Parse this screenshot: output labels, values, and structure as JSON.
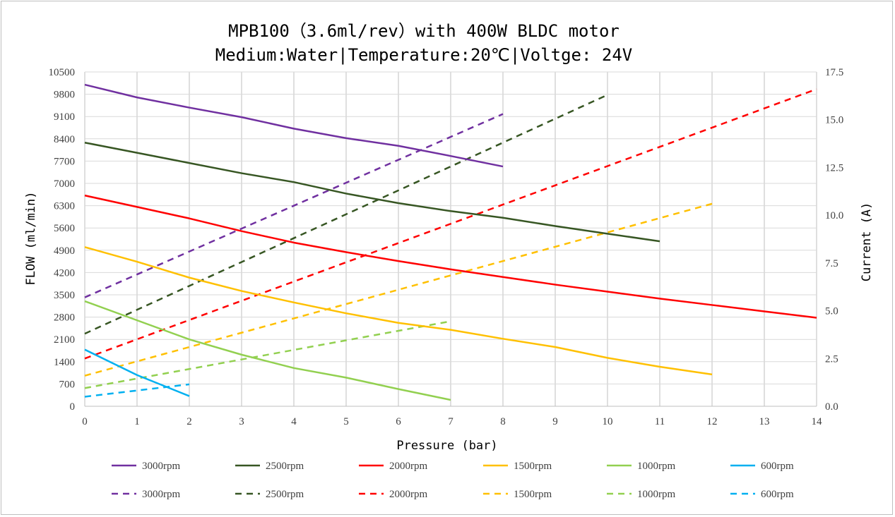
{
  "chart_data": {
    "type": "line",
    "title": "MPB100（3.6ml/rev）with 400W BLDC motor",
    "subtitle": "Medium:Water|Temperature:20℃|Voltge: 24V",
    "xlabel": "Pressure (bar)",
    "ylabel": "FLOW (ml/min)",
    "y2label": "Current (A)",
    "xlim": [
      0,
      14
    ],
    "ylim": [
      0,
      10500
    ],
    "y2lim": [
      0,
      17.5
    ],
    "x_ticks": [
      "0",
      "1",
      "2",
      "3",
      "4",
      "5",
      "6",
      "7",
      "8",
      "9",
      "10",
      "11",
      "12",
      "13",
      "14"
    ],
    "y_ticks": [
      "0",
      "700",
      "1400",
      "2100",
      "2800",
      "3500",
      "4200",
      "4900",
      "5600",
      "6300",
      "7000",
      "7700",
      "8400",
      "9100",
      "9800",
      "10500"
    ],
    "y2_ticks": [
      "0.0",
      "2.5",
      "5.0",
      "7.5",
      "10.0",
      "12.5",
      "15.0",
      "17.5"
    ],
    "grid": true,
    "legend_position": "bottom",
    "flow_series": [
      {
        "name": "3000rpm",
        "color": "#7030a0",
        "x": [
          0,
          1,
          2,
          3,
          4,
          5,
          6,
          7,
          8
        ],
        "values": [
          10100,
          9700,
          9380,
          9080,
          8720,
          8420,
          8180,
          7860,
          7530
        ]
      },
      {
        "name": "2500rpm",
        "color": "#375623",
        "x": [
          0,
          1,
          2,
          3,
          4,
          5,
          6,
          7,
          8,
          9,
          10,
          11
        ],
        "values": [
          8280,
          7960,
          7640,
          7320,
          7040,
          6680,
          6380,
          6130,
          5920,
          5660,
          5420,
          5180
        ]
      },
      {
        "name": "2000rpm",
        "color": "#ff0000",
        "x": [
          0,
          1,
          2,
          3,
          4,
          5,
          6,
          7,
          8,
          9,
          10,
          11,
          12,
          13,
          14
        ],
        "values": [
          6620,
          6260,
          5900,
          5500,
          5140,
          4840,
          4560,
          4300,
          4060,
          3820,
          3600,
          3380,
          3180,
          2980,
          2780
        ]
      },
      {
        "name": "1500rpm",
        "color": "#ffc000",
        "x": [
          0,
          1,
          2,
          3,
          4,
          5,
          6,
          7,
          8,
          9,
          10,
          11,
          12
        ],
        "values": [
          5000,
          4540,
          4040,
          3620,
          3260,
          2920,
          2620,
          2400,
          2120,
          1860,
          1520,
          1240,
          1000
        ]
      },
      {
        "name": "1000rpm",
        "color": "#92d050",
        "x": [
          0,
          1,
          2,
          3,
          4,
          5,
          6,
          7
        ],
        "values": [
          3300,
          2700,
          2100,
          1620,
          1200,
          900,
          540,
          200
        ]
      },
      {
        "name": "600rpm",
        "color": "#00b0f0",
        "x": [
          0,
          1,
          2
        ],
        "values": [
          1780,
          980,
          320
        ]
      }
    ],
    "current_series": [
      {
        "name": "3000rpm",
        "color": "#7030a0",
        "x": [
          0,
          8
        ],
        "values": [
          5.7,
          15.3
        ]
      },
      {
        "name": "2500rpm",
        "color": "#375623",
        "x": [
          0,
          10
        ],
        "values": [
          3.8,
          16.3
        ]
      },
      {
        "name": "2000rpm",
        "color": "#ff0000",
        "x": [
          0,
          14
        ],
        "values": [
          2.5,
          16.6
        ]
      },
      {
        "name": "1500rpm",
        "color": "#ffc000",
        "x": [
          0,
          12
        ],
        "values": [
          1.6,
          10.6
        ]
      },
      {
        "name": "1000rpm",
        "color": "#92d050",
        "x": [
          0,
          7
        ],
        "values": [
          0.95,
          4.45
        ]
      },
      {
        "name": "600rpm",
        "color": "#00b0f0",
        "x": [
          0,
          2
        ],
        "values": [
          0.5,
          1.15
        ]
      }
    ]
  }
}
